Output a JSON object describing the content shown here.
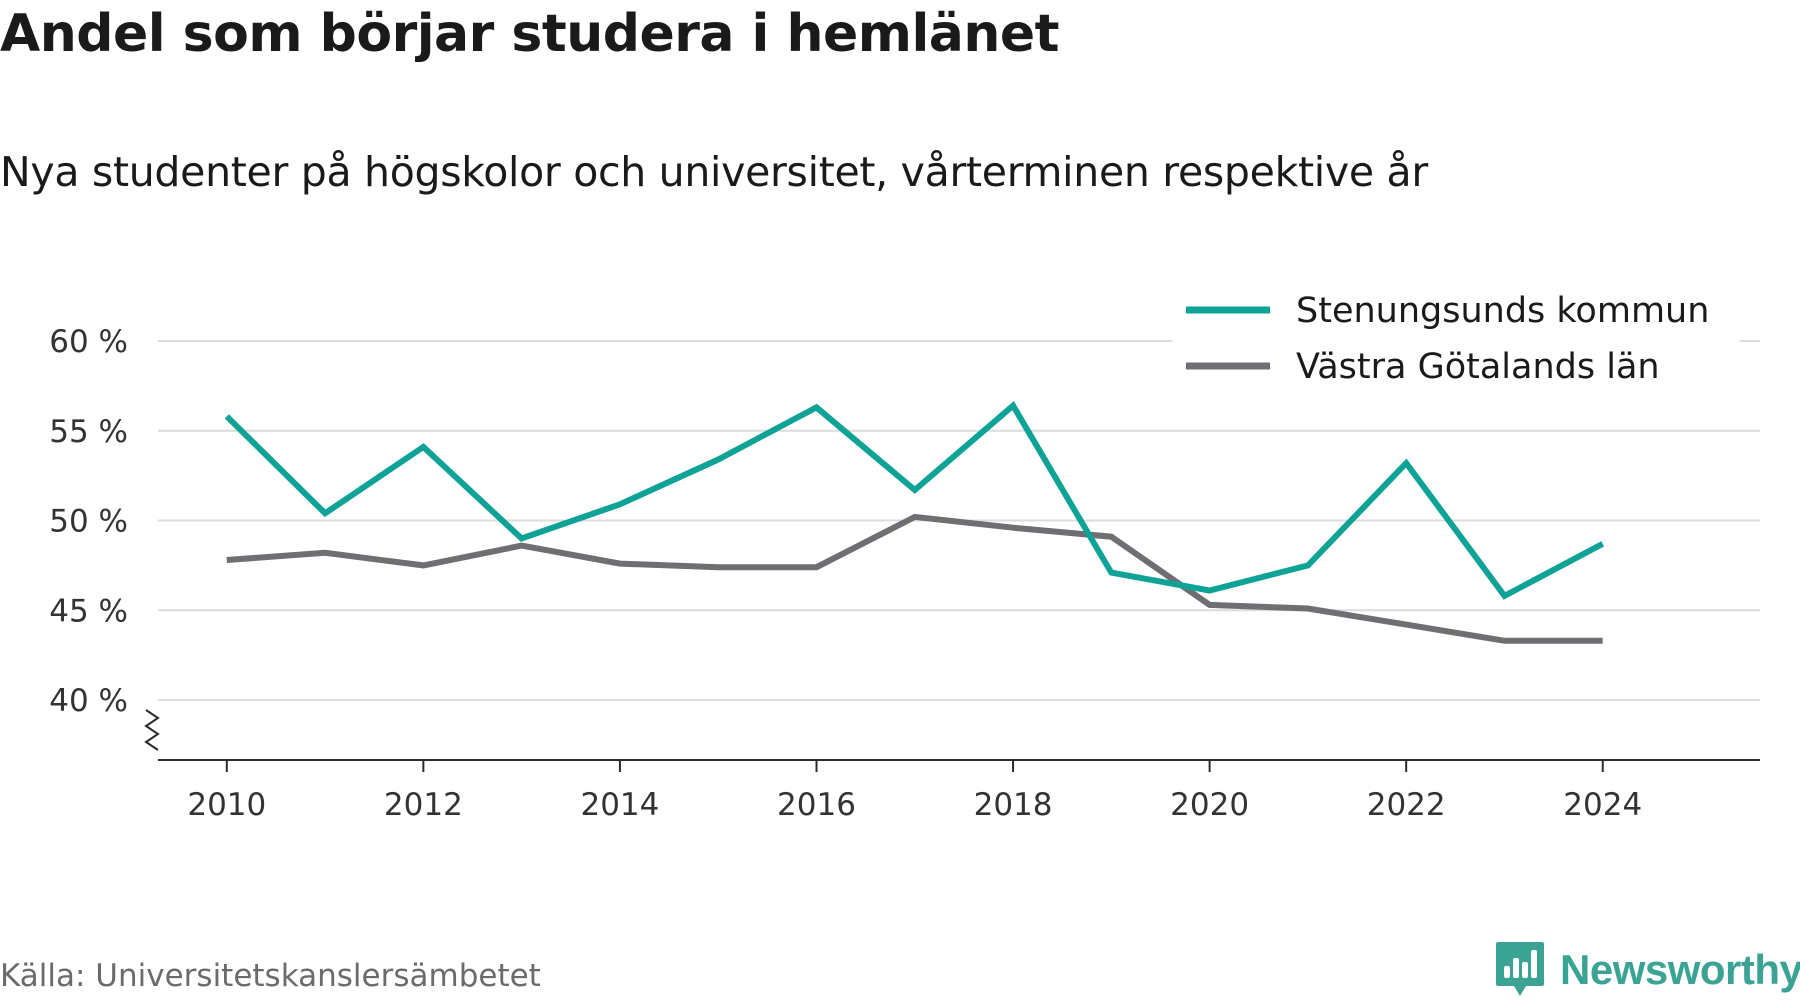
{
  "title": "Andel som börjar studera i hemlänet",
  "subtitle": "Nya studenter på högskolor och universitet, vårterminen respektive år",
  "source": "Källa: Universitetskanslersämbetet",
  "logo": {
    "text": "Newsworthy",
    "icon": "bar-chart-badge-icon",
    "color": "#3aa393"
  },
  "chart_data": {
    "type": "line",
    "x": [
      2010,
      2011,
      2012,
      2013,
      2014,
      2015,
      2016,
      2017,
      2018,
      2019,
      2020,
      2021,
      2022,
      2023,
      2024
    ],
    "xticks": [
      2010,
      2012,
      2014,
      2016,
      2018,
      2020,
      2022,
      2024
    ],
    "xtick_labels": [
      "2010",
      "2012",
      "2014",
      "2016",
      "2018",
      "2020",
      "2022",
      "2024"
    ],
    "yticks": [
      40,
      45,
      50,
      55,
      60
    ],
    "ytick_labels": [
      "40 %",
      "45 %",
      "50 %",
      "55 %",
      "60 %"
    ],
    "ylim": [
      40,
      60
    ],
    "y_axis_break": true,
    "grid": true,
    "legend_position": "top-right",
    "series": [
      {
        "name": "Stenungsunds kommun",
        "color": "#0fa398",
        "values": [
          55.8,
          50.4,
          54.1,
          49.0,
          50.9,
          53.4,
          56.3,
          51.7,
          56.4,
          47.1,
          46.1,
          47.5,
          53.2,
          45.8,
          48.7
        ]
      },
      {
        "name": "Västra Götalands län",
        "color": "#6e6e73",
        "values": [
          47.8,
          48.2,
          47.5,
          48.6,
          47.6,
          47.4,
          47.4,
          50.2,
          49.6,
          49.1,
          45.3,
          45.1,
          44.2,
          43.3,
          43.3
        ]
      }
    ]
  }
}
